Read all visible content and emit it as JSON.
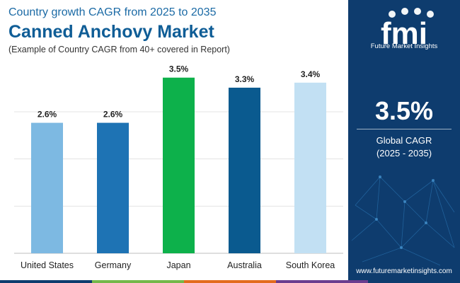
{
  "header": {
    "top_line": "Country growth CAGR from 2025 to 2035",
    "title": "Canned Anchovy Market",
    "subtitle": "(Example of Country CAGR from 40+ covered in Report)"
  },
  "brand": {
    "logo_letters": "fmi",
    "name": "Future Market Insights",
    "website": "www.futuremarketinsights.com"
  },
  "highlight": {
    "value": "3.5%",
    "label_line1": "Global CAGR",
    "label_line2": "(2025 - 2035)"
  },
  "colors": {
    "sidebar": "#0e3c6e",
    "title": "#0f5d96",
    "bottom_bar": [
      "#0e3c6e",
      "#74b84a",
      "#e36c1e",
      "#6b3d8f",
      "#0e3c6e"
    ]
  },
  "chart_data": {
    "type": "bar",
    "categories": [
      "United States",
      "Germany",
      "Japan",
      "Australia",
      "South Korea"
    ],
    "values": [
      2.6,
      2.6,
      3.5,
      3.3,
      3.4
    ],
    "data_labels": [
      "2.6%",
      "2.6%",
      "3.5%",
      "3.3%",
      "3.4%"
    ],
    "colors": [
      "#7db9e2",
      "#1e73b4",
      "#0db14b",
      "#0a5a8f",
      "#c2e0f3"
    ],
    "ylim": [
      0,
      3.75
    ],
    "grid": true,
    "title": "",
    "xlabel": "",
    "ylabel": ""
  }
}
